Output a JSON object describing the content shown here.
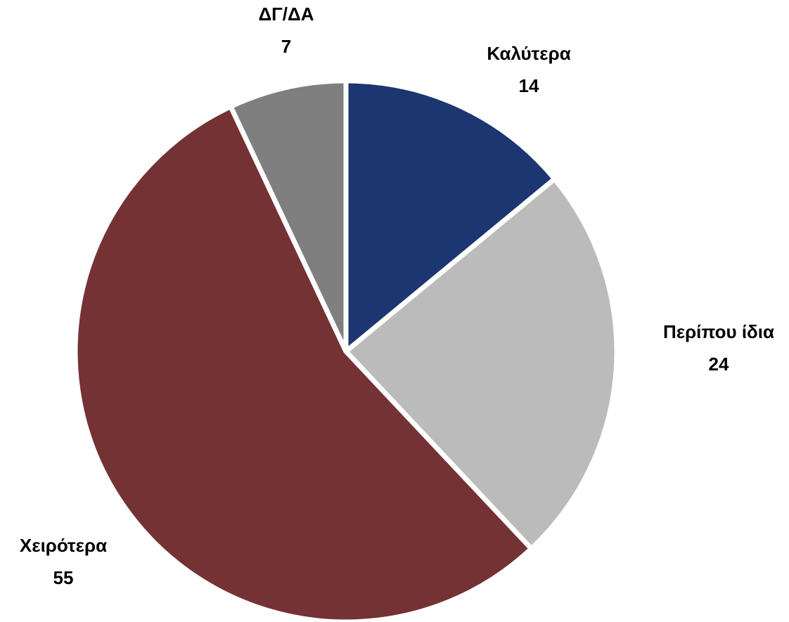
{
  "chart_data": {
    "type": "pie",
    "categories": [
      "Καλύτερα",
      "Περίπου ίδια",
      "Χειρότερα",
      "ΔΓ/ΔΑ"
    ],
    "values": [
      14,
      24,
      55,
      7
    ],
    "colors": [
      "#1b3670",
      "#bbbbbb",
      "#743234",
      "#7f7f7f"
    ]
  }
}
